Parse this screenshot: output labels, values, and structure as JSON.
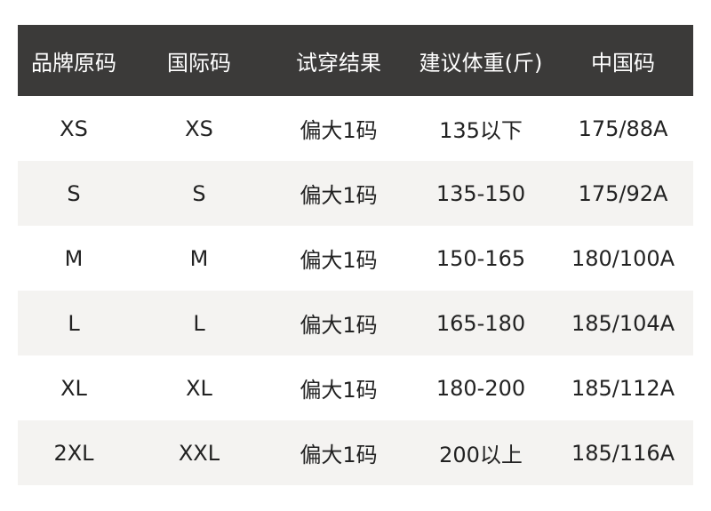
{
  "table": {
    "header": [
      "品牌原码",
      "国际码",
      "试穿结果",
      "建议体重(斤)",
      "中国码"
    ],
    "rows": [
      [
        "XS",
        "XS",
        "偏大1码",
        "135以下",
        "175/88A"
      ],
      [
        "S",
        "S",
        "偏大1码",
        "135-150",
        "175/92A"
      ],
      [
        "M",
        "M",
        "偏大1码",
        "150-165",
        "180/100A"
      ],
      [
        "L",
        "L",
        "偏大1码",
        "165-180",
        "185/104A"
      ],
      [
        "XL",
        "XL",
        "偏大1码",
        "180-200",
        "185/112A"
      ],
      [
        "2XL",
        "XXL",
        "偏大1码",
        "200以上",
        "185/116A"
      ]
    ]
  }
}
